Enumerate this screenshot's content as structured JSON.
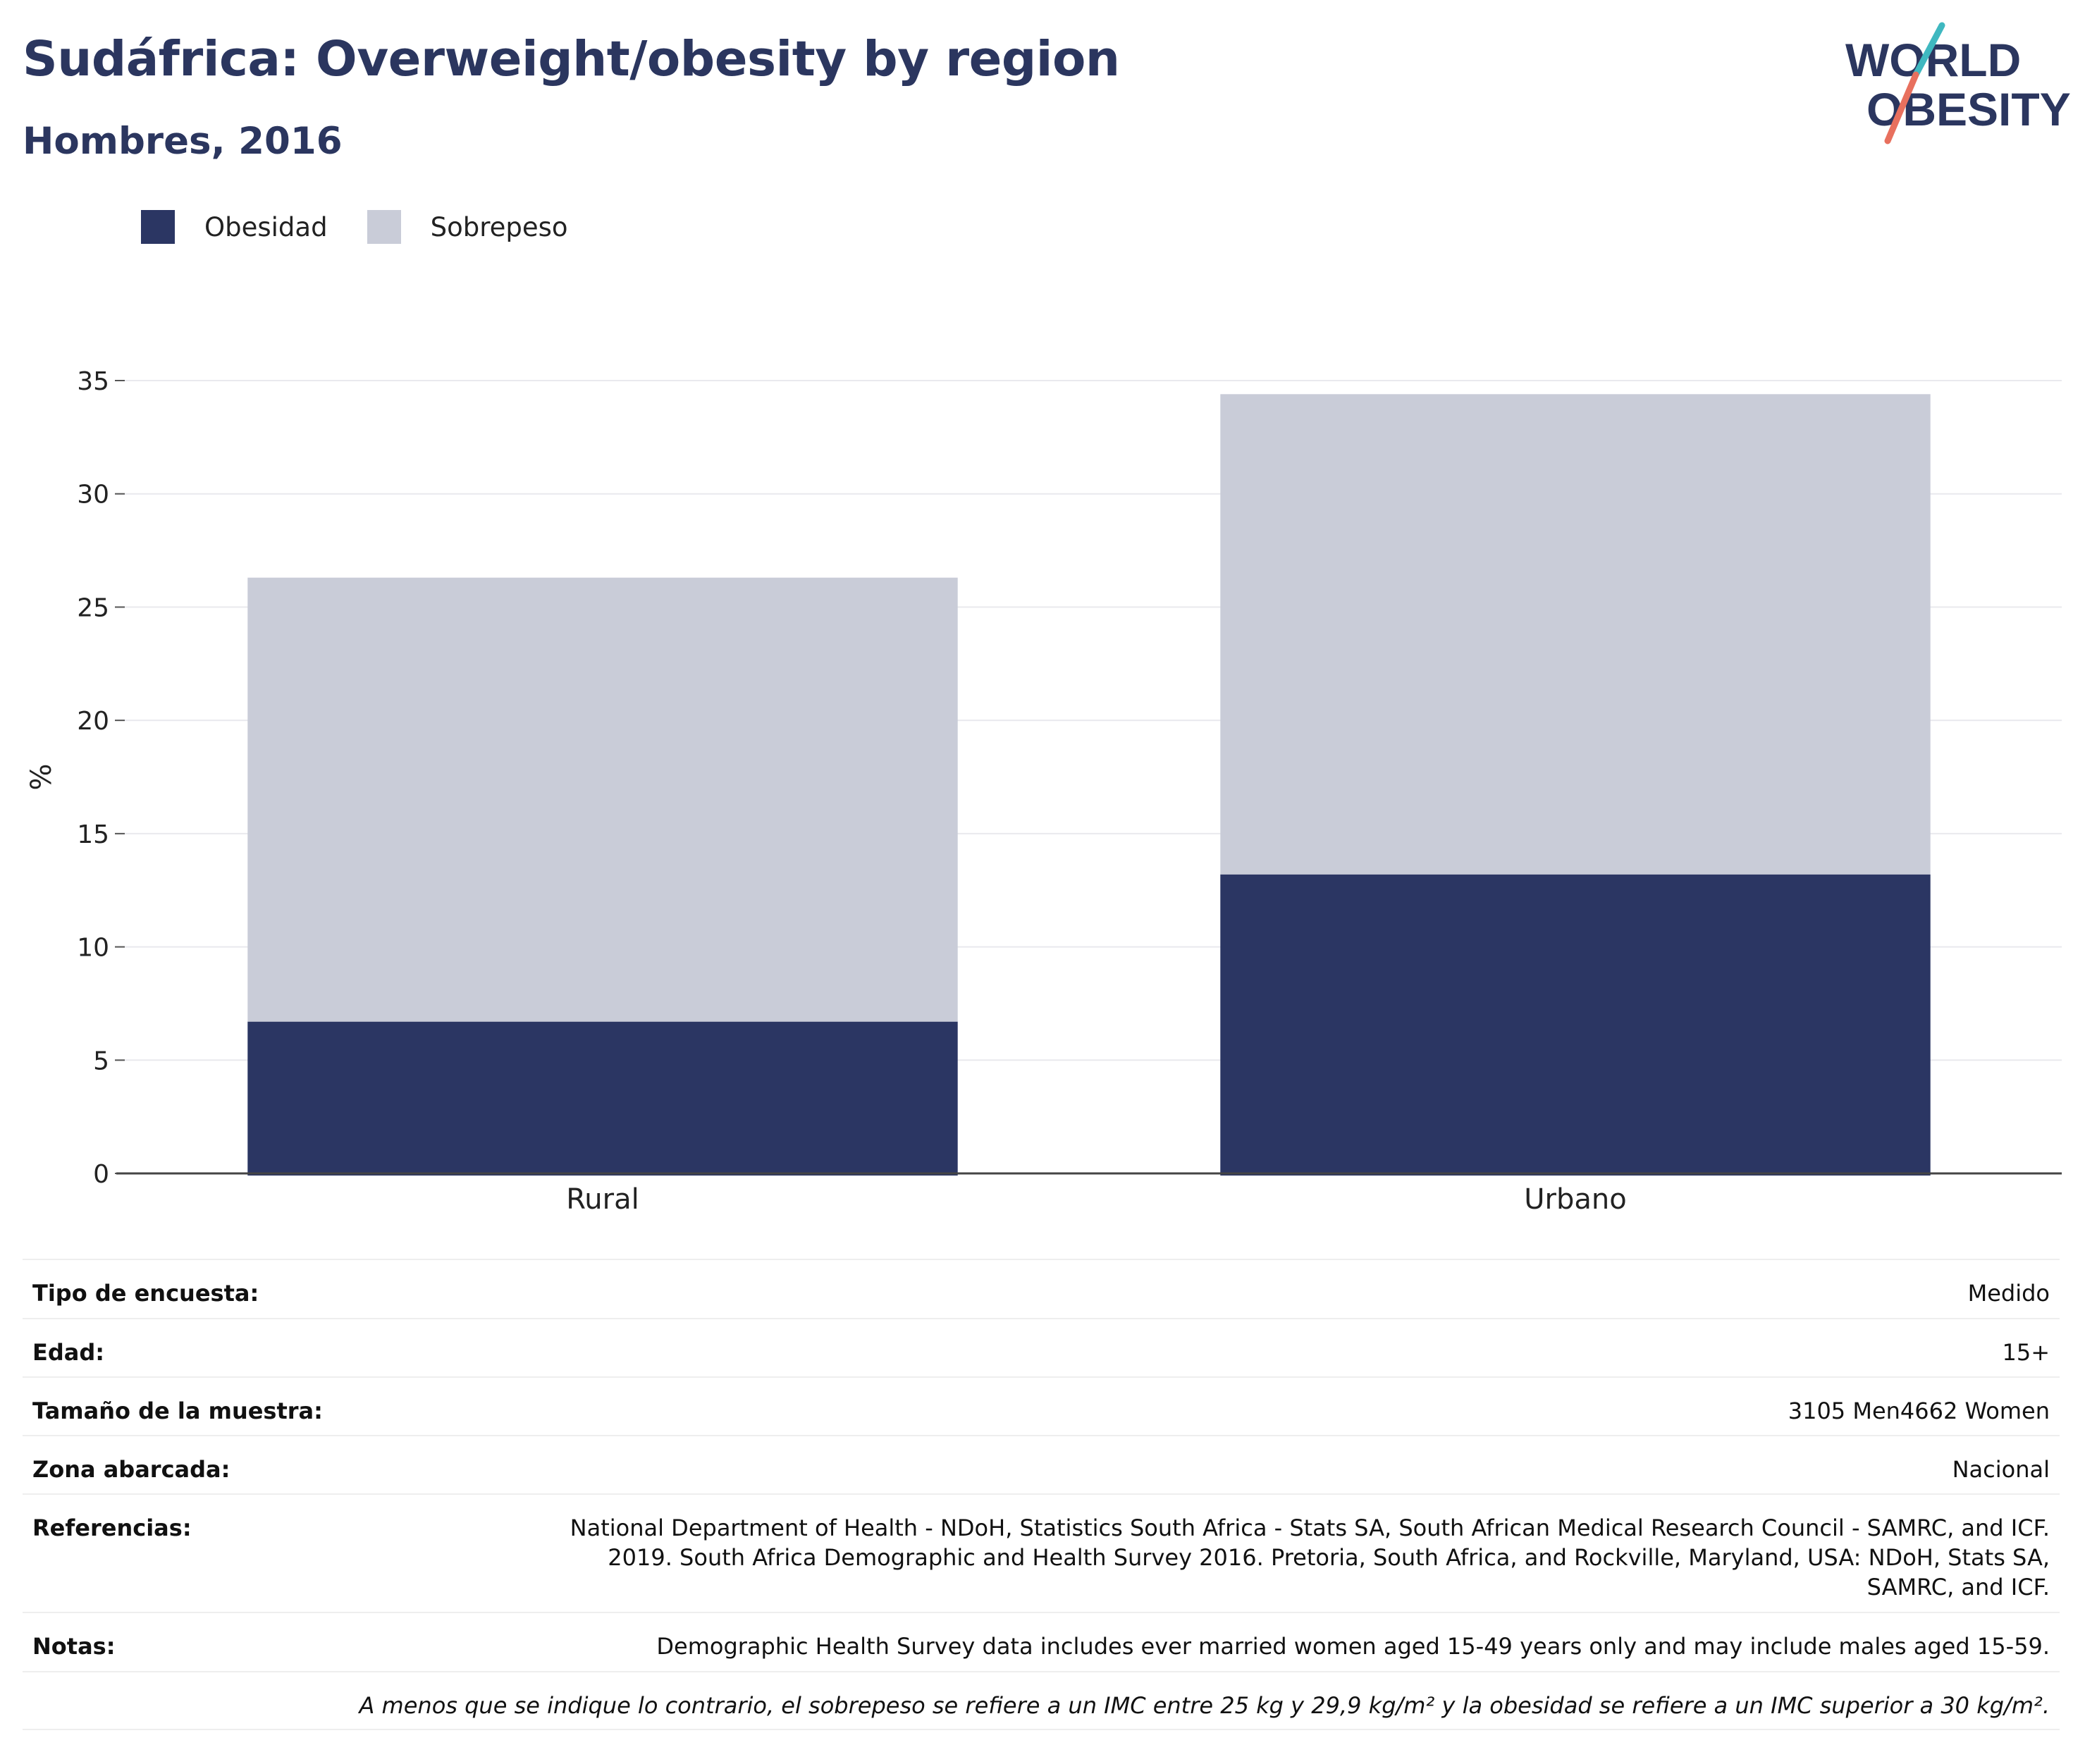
{
  "header": {
    "title": "Sudáfrica: Overweight/obesity by region",
    "subtitle": "Hombres, 2016"
  },
  "logo": {
    "line1": "WORLD",
    "line2": "OBESITY"
  },
  "colors": {
    "obesity": "#2b3663",
    "overweight": "#c9ccd8",
    "title": "#2b365f",
    "logo_teal": "#3fb8c0",
    "logo_coral": "#e8705e"
  },
  "legend": [
    {
      "label": "Obesidad",
      "color": "#2b3663"
    },
    {
      "label": "Sobrepeso",
      "color": "#c9ccd8"
    }
  ],
  "chart_data": {
    "type": "bar",
    "stacked": true,
    "categories": [
      "Rural",
      "Urbano"
    ],
    "series": [
      {
        "name": "Obesidad",
        "values": [
          6.7,
          13.2
        ]
      },
      {
        "name": "Sobrepeso",
        "values": [
          19.6,
          21.2
        ]
      }
    ],
    "ylabel": "%",
    "ylim": [
      0,
      35
    ],
    "yticks": [
      0,
      5,
      10,
      15,
      20,
      25,
      30,
      35
    ],
    "grid": true,
    "legend_position": "top-left"
  },
  "meta": [
    {
      "key": "Tipo de encuesta:",
      "value": "Medido"
    },
    {
      "key": "Edad:",
      "value": "15+"
    },
    {
      "key": "Tamaño de la muestra:",
      "value": "3105 Men4662 Women"
    },
    {
      "key": "Zona abarcada:",
      "value": "Nacional"
    },
    {
      "key": "Referencias:",
      "value": "National Department of Health - NDoH, Statistics South Africa - Stats SA, South African Medical Research Council - SAMRC, and ICF. 2019. South Africa Demographic and Health Survey 2016. Pretoria, South Africa, and Rockville, Maryland, USA: NDoH, Stats SA, SAMRC, and ICF."
    },
    {
      "key": "Notas:",
      "value": "Demographic Health Survey data includes ever married women aged 15-49 years only and may include males aged 15-59."
    }
  ],
  "footnote": "A menos que se indique lo contrario, el sobrepeso se refiere a un IMC entre 25 kg y 29,9 kg/m² y la obesidad se refiere a un IMC superior a 30 kg/m²."
}
